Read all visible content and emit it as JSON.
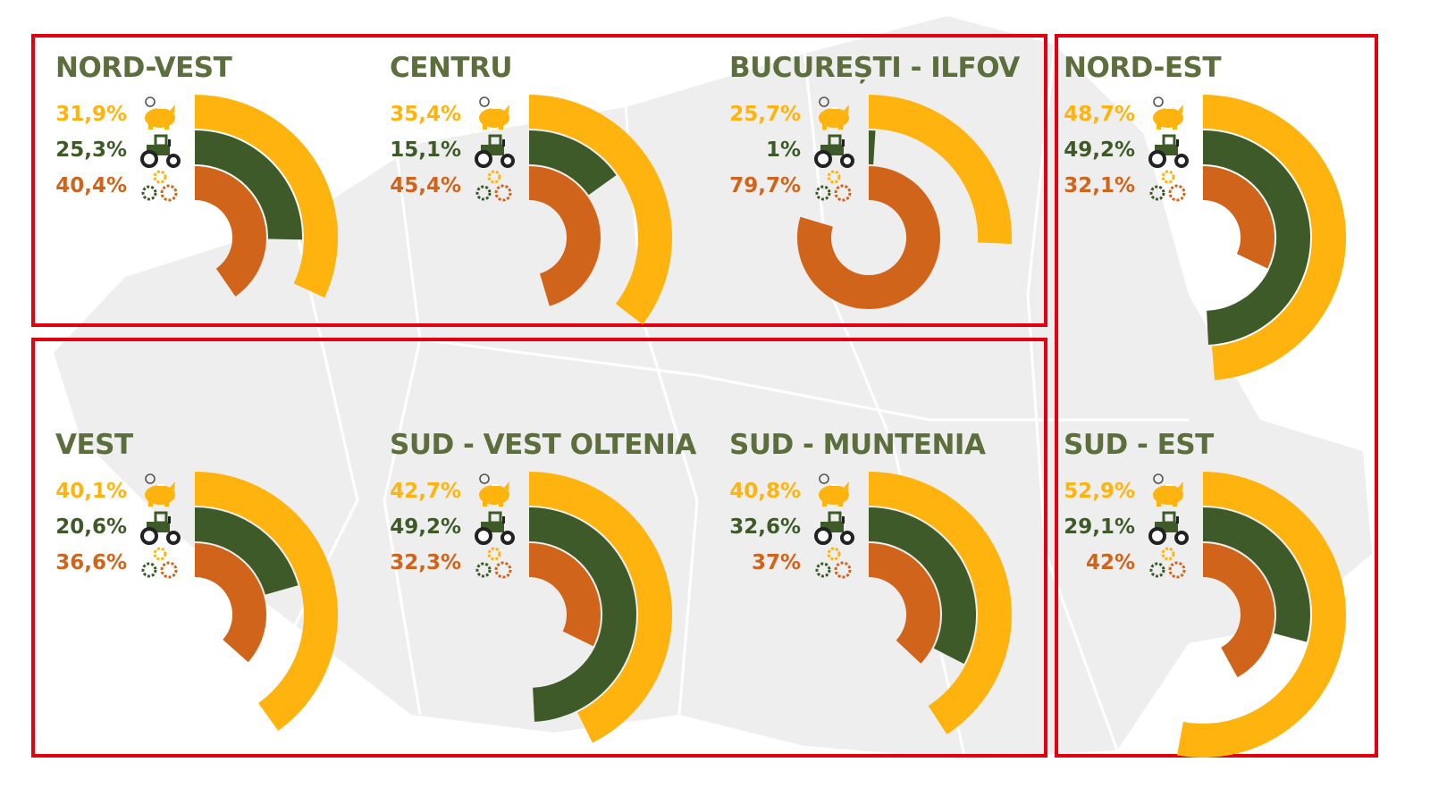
{
  "colors": {
    "savings": "#ffb30f",
    "agriculture": "#3e5a29",
    "industry": "#d0641b",
    "title": "#5b6e3c",
    "frame": "#e3000f",
    "map": "#eeeeee"
  },
  "icons": {
    "savings": "piggy-bank-icon",
    "agriculture": "tractor-icon",
    "industry": "gears-icon"
  },
  "chart_data": {
    "type": "radial-bar",
    "series": [
      "savings",
      "agriculture",
      "industry"
    ],
    "max_value": 100,
    "regions": [
      {
        "id": "nord-vest",
        "title": "NORD-VEST",
        "labels": [
          "31,9%",
          "25,3%",
          "40,4%"
        ],
        "values": [
          31.9,
          25.3,
          40.4
        ]
      },
      {
        "id": "centru",
        "title": "CENTRU",
        "labels": [
          "35,4%",
          "15,1%",
          "45,4%"
        ],
        "values": [
          35.4,
          15.1,
          45.4
        ]
      },
      {
        "id": "bucuresti-ilfov",
        "title": "BUCUREȘTI - ILFOV",
        "labels": [
          "25,7%",
          "1%",
          "79,7%"
        ],
        "values": [
          25.7,
          1,
          79.7
        ]
      },
      {
        "id": "nord-est",
        "title": "NORD-EST",
        "labels": [
          "48,7%",
          "49,2%",
          "32,1%"
        ],
        "values": [
          48.7,
          49.2,
          32.1
        ]
      },
      {
        "id": "vest",
        "title": "VEST",
        "labels": [
          "40,1%",
          "20,6%",
          "36,6%"
        ],
        "values": [
          40.1,
          20.6,
          36.6
        ]
      },
      {
        "id": "sud-vest-oltenia",
        "title": "SUD - VEST OLTENIA",
        "labels": [
          "42,7%",
          "49,2%",
          "32,3%"
        ],
        "values": [
          42.7,
          49.2,
          32.3
        ]
      },
      {
        "id": "sud-muntenia",
        "title": "SUD - MUNTENIA",
        "labels": [
          "40,8%",
          "32,6%",
          "37%"
        ],
        "values": [
          40.8,
          32.6,
          37
        ]
      },
      {
        "id": "sud-est",
        "title": "SUD - EST",
        "labels": [
          "52,9%",
          "29,1%",
          "42%"
        ],
        "values": [
          52.9,
          29.1,
          42
        ]
      }
    ]
  }
}
